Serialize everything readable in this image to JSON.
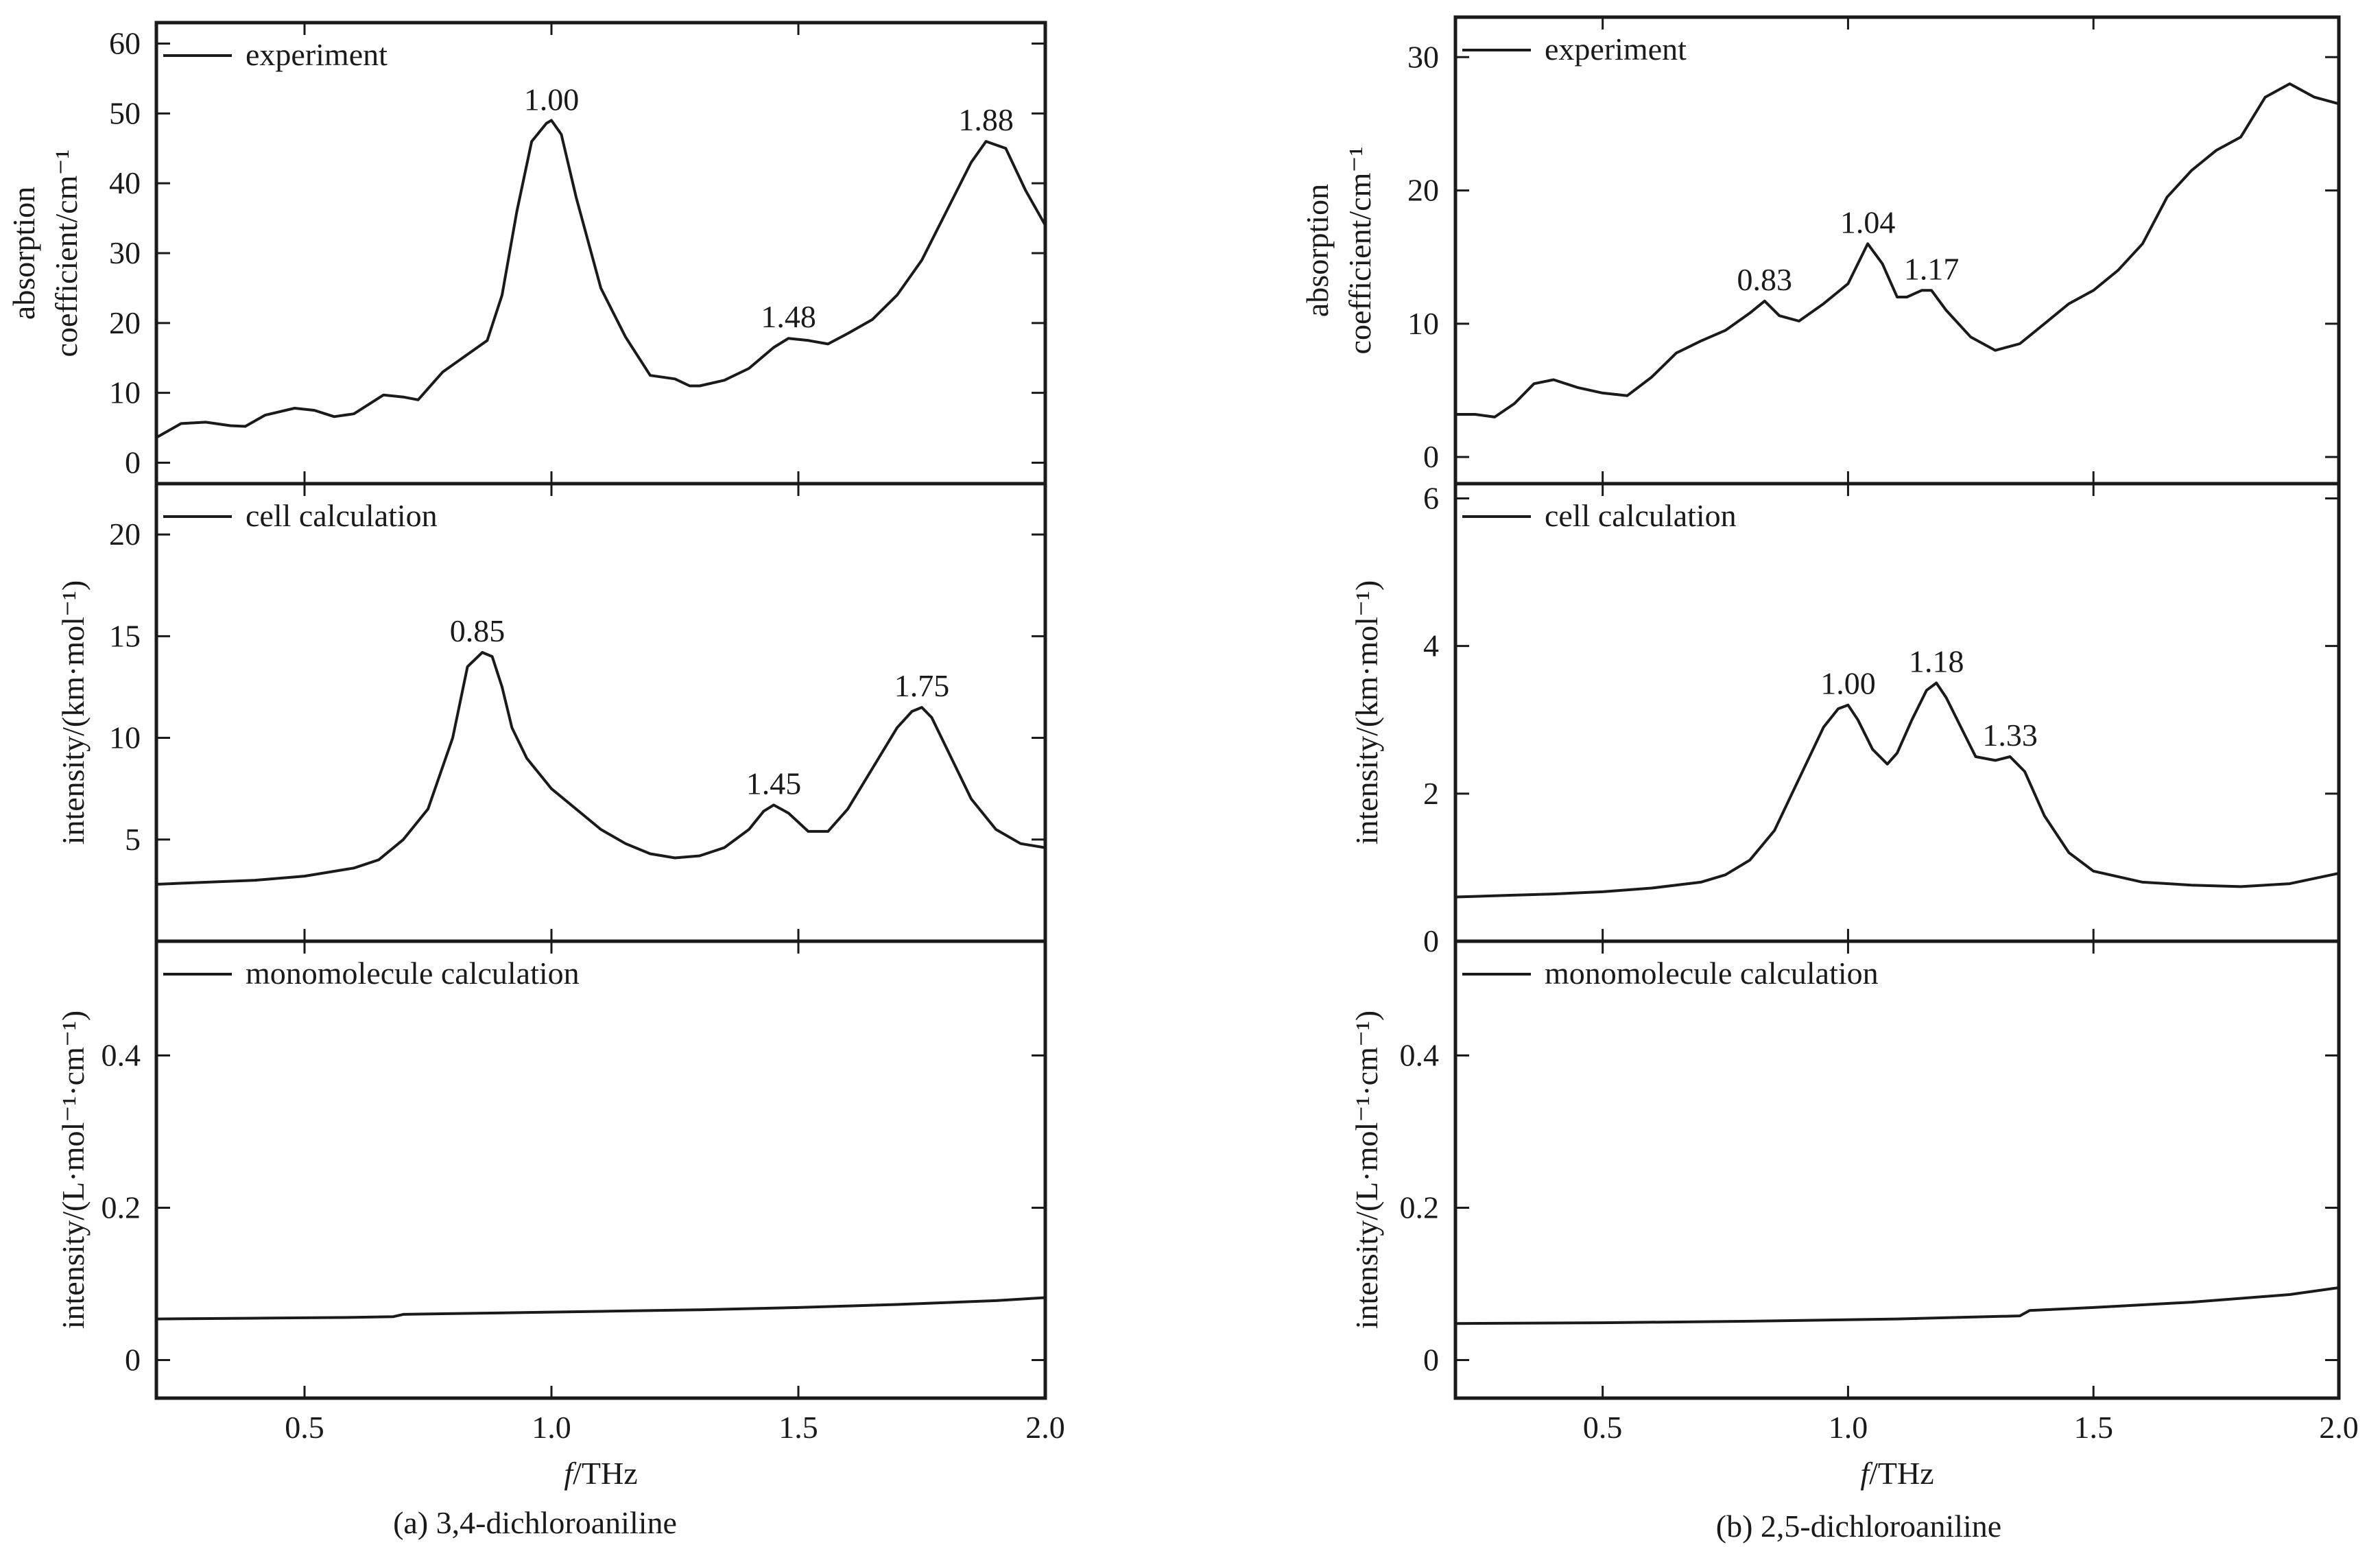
{
  "chart_data": [
    {
      "type": "line",
      "caption": "(a) 3,4-dichloroaniline",
      "xlabel_italic": "f",
      "xlabel_rest": "/THz",
      "xlim": [
        0.2,
        2.0
      ],
      "xticks": [
        "0.5",
        "1.0",
        "1.5",
        "2.0"
      ],
      "xtick_values": [
        0.5,
        1.0,
        1.5,
        2.0
      ],
      "panels": [
        {
          "legend": "experiment",
          "ylabel_lines": [
            "absorption",
            "coefficient/cm⁻¹"
          ],
          "ylim": [
            -3,
            63
          ],
          "yticks": [
            "0",
            "10",
            "20",
            "30",
            "40",
            "50",
            "60"
          ],
          "ytick_values": [
            0,
            10,
            20,
            30,
            40,
            50,
            60
          ],
          "x": [
            0.2,
            0.25,
            0.3,
            0.35,
            0.38,
            0.42,
            0.48,
            0.52,
            0.56,
            0.6,
            0.66,
            0.7,
            0.73,
            0.78,
            0.83,
            0.87,
            0.9,
            0.93,
            0.96,
            0.99,
            1.0,
            1.02,
            1.05,
            1.1,
            1.15,
            1.2,
            1.25,
            1.28,
            1.3,
            1.35,
            1.4,
            1.45,
            1.48,
            1.52,
            1.56,
            1.6,
            1.65,
            1.7,
            1.75,
            1.8,
            1.85,
            1.88,
            1.92,
            1.96,
            2.0
          ],
          "y": [
            3.6,
            5.6,
            5.8,
            5.3,
            5.2,
            6.8,
            7.8,
            7.5,
            6.6,
            7.0,
            9.7,
            9.4,
            9.0,
            13.0,
            15.5,
            17.5,
            24.0,
            36.0,
            46.0,
            48.6,
            49.0,
            47.0,
            38.0,
            25.0,
            18.0,
            12.5,
            12.0,
            11.0,
            11.0,
            11.8,
            13.5,
            16.5,
            17.8,
            17.5,
            17.0,
            18.5,
            20.5,
            24.0,
            29.0,
            36.0,
            43.0,
            46.0,
            45.0,
            39.0,
            34.0
          ],
          "annotations": [
            {
              "x": 1.0,
              "y": 48.9,
              "text": "1.00"
            },
            {
              "x": 1.48,
              "y": 17.8,
              "text": "1.48"
            },
            {
              "x": 1.88,
              "y": 46.0,
              "text": "1.88"
            }
          ]
        },
        {
          "legend": "cell calculation",
          "ylabel_lines": [
            "intensity/(km·mol⁻¹)"
          ],
          "ylim": [
            0,
            22.5
          ],
          "yticks": [
            "5",
            "10",
            "15",
            "20"
          ],
          "ytick_values": [
            5,
            10,
            15,
            20
          ],
          "x": [
            0.2,
            0.3,
            0.4,
            0.5,
            0.6,
            0.65,
            0.7,
            0.75,
            0.8,
            0.83,
            0.86,
            0.88,
            0.9,
            0.92,
            0.95,
            1.0,
            1.05,
            1.1,
            1.15,
            1.2,
            1.25,
            1.3,
            1.35,
            1.4,
            1.43,
            1.45,
            1.48,
            1.52,
            1.56,
            1.6,
            1.65,
            1.7,
            1.73,
            1.75,
            1.77,
            1.8,
            1.85,
            1.9,
            1.95,
            2.0
          ],
          "y": [
            2.8,
            2.9,
            3.0,
            3.2,
            3.6,
            4.0,
            5.0,
            6.5,
            10.0,
            13.5,
            14.2,
            14.0,
            12.5,
            10.5,
            9.0,
            7.5,
            6.5,
            5.5,
            4.8,
            4.3,
            4.1,
            4.2,
            4.6,
            5.5,
            6.4,
            6.7,
            6.3,
            5.4,
            5.4,
            6.5,
            8.5,
            10.5,
            11.3,
            11.5,
            11.0,
            9.5,
            7.0,
            5.5,
            4.8,
            4.6
          ],
          "annotations": [
            {
              "x": 0.85,
              "y": 14.2,
              "text": "0.85"
            },
            {
              "x": 1.45,
              "y": 6.7,
              "text": "1.45"
            },
            {
              "x": 1.75,
              "y": 11.5,
              "text": "1.75"
            }
          ]
        },
        {
          "legend": "monomolecule calculation",
          "ylabel_lines": [
            "intensity/(L·mol⁻¹·cm⁻¹)"
          ],
          "ylim": [
            -0.05,
            0.55
          ],
          "yticks": [
            "0",
            "0.2",
            "0.4"
          ],
          "ytick_values": [
            0,
            0.2,
            0.4
          ],
          "x": [
            0.2,
            0.4,
            0.6,
            0.68,
            0.7,
            0.9,
            1.1,
            1.3,
            1.5,
            1.7,
            1.9,
            2.0
          ],
          "y": [
            0.054,
            0.055,
            0.056,
            0.057,
            0.06,
            0.062,
            0.064,
            0.066,
            0.069,
            0.073,
            0.078,
            0.082
          ],
          "annotations": []
        }
      ]
    },
    {
      "type": "line",
      "caption": "(b) 2,5-dichloroaniline",
      "xlabel_italic": "f",
      "xlabel_rest": "/THz",
      "xlim": [
        0.2,
        2.0
      ],
      "xticks": [
        "0.5",
        "1.0",
        "1.5",
        "2.0"
      ],
      "xtick_values": [
        0.5,
        1.0,
        1.5,
        2.0
      ],
      "panels": [
        {
          "legend": "experiment",
          "ylabel_lines": [
            "absorption",
            "coefficient/cm⁻¹"
          ],
          "ylim": [
            -2,
            33
          ],
          "yticks": [
            "0",
            "10",
            "20",
            "30"
          ],
          "ytick_values": [
            0,
            10,
            20,
            30
          ],
          "x": [
            0.2,
            0.24,
            0.28,
            0.32,
            0.36,
            0.4,
            0.45,
            0.5,
            0.55,
            0.6,
            0.65,
            0.7,
            0.75,
            0.8,
            0.83,
            0.86,
            0.9,
            0.95,
            1.0,
            1.04,
            1.07,
            1.1,
            1.12,
            1.15,
            1.17,
            1.2,
            1.25,
            1.3,
            1.35,
            1.4,
            1.45,
            1.5,
            1.55,
            1.6,
            1.65,
            1.7,
            1.75,
            1.8,
            1.85,
            1.9,
            1.95,
            2.0
          ],
          "y": [
            3.2,
            3.2,
            3.0,
            4.0,
            5.5,
            5.8,
            5.2,
            4.8,
            4.6,
            6.0,
            7.8,
            8.7,
            9.5,
            10.8,
            11.7,
            10.6,
            10.2,
            11.5,
            13.0,
            16.0,
            14.5,
            12.0,
            12.0,
            12.5,
            12.5,
            11.0,
            9.0,
            8.0,
            8.5,
            10.0,
            11.5,
            12.5,
            14.0,
            16.0,
            19.5,
            21.5,
            23.0,
            24.0,
            27.0,
            28.0,
            27.0,
            26.5
          ],
          "annotations": [
            {
              "x": 0.83,
              "y": 11.7,
              "text": "0.83"
            },
            {
              "x": 1.04,
              "y": 16.0,
              "text": "1.04"
            },
            {
              "x": 1.17,
              "y": 12.5,
              "text": "1.17"
            }
          ]
        },
        {
          "legend": "cell calculation",
          "ylabel_lines": [
            "intensity/(km·mol⁻¹)"
          ],
          "ylim": [
            0,
            6.2
          ],
          "yticks": [
            "0",
            "2",
            "4",
            "6"
          ],
          "ytick_values": [
            0,
            2,
            4,
            6
          ],
          "x": [
            0.2,
            0.3,
            0.4,
            0.5,
            0.6,
            0.7,
            0.75,
            0.8,
            0.85,
            0.9,
            0.95,
            0.98,
            1.0,
            1.02,
            1.05,
            1.08,
            1.1,
            1.13,
            1.16,
            1.18,
            1.2,
            1.23,
            1.26,
            1.3,
            1.33,
            1.36,
            1.4,
            1.45,
            1.5,
            1.6,
            1.7,
            1.8,
            1.9,
            2.0
          ],
          "y": [
            0.6,
            0.62,
            0.64,
            0.67,
            0.72,
            0.8,
            0.9,
            1.1,
            1.5,
            2.2,
            2.9,
            3.15,
            3.2,
            3.0,
            2.6,
            2.4,
            2.55,
            3.0,
            3.4,
            3.5,
            3.3,
            2.9,
            2.5,
            2.45,
            2.5,
            2.3,
            1.7,
            1.2,
            0.95,
            0.8,
            0.76,
            0.74,
            0.78,
            0.92
          ],
          "annotations": [
            {
              "x": 1.0,
              "y": 3.2,
              "text": "1.00"
            },
            {
              "x": 1.18,
              "y": 3.5,
              "text": "1.18"
            },
            {
              "x": 1.33,
              "y": 2.5,
              "text": "1.33"
            }
          ]
        },
        {
          "legend": "monomolecule calculation",
          "ylabel_lines": [
            "intensity/(L·mol⁻¹·cm⁻¹)"
          ],
          "ylim": [
            -0.05,
            0.55
          ],
          "yticks": [
            "0",
            "0.2",
            "0.4"
          ],
          "ytick_values": [
            0,
            0.2,
            0.4
          ],
          "x": [
            0.2,
            0.5,
            0.8,
            1.1,
            1.35,
            1.37,
            1.5,
            1.7,
            1.9,
            2.0
          ],
          "y": [
            0.048,
            0.049,
            0.051,
            0.054,
            0.058,
            0.065,
            0.069,
            0.076,
            0.086,
            0.095
          ],
          "annotations": []
        }
      ]
    }
  ]
}
